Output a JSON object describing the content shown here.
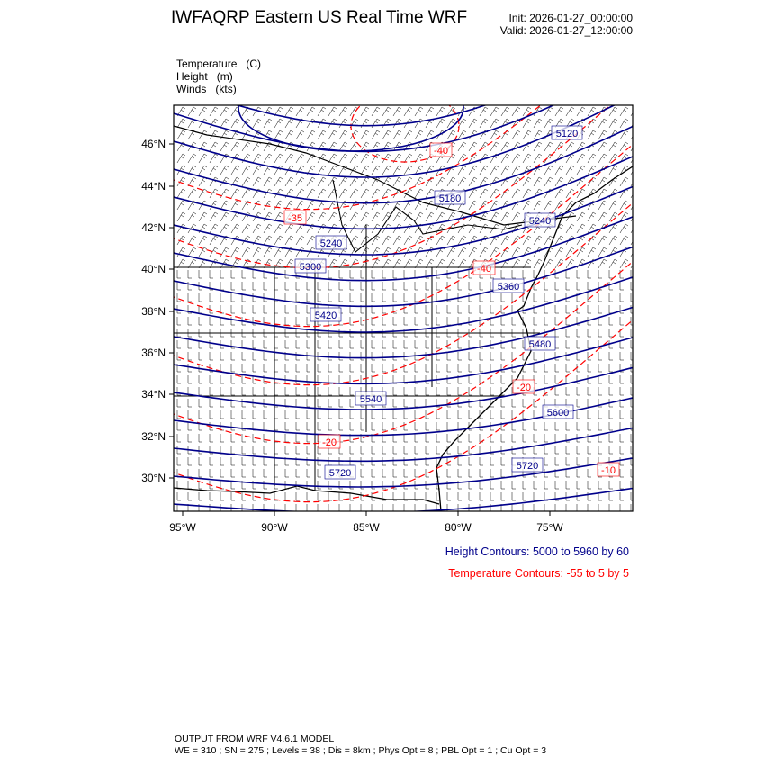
{
  "header": {
    "title": "IWFAQRP Eastern US Real Time WRF",
    "init": "Init: 2026-01-27_00:00:00",
    "valid": "Valid: 2026-01-27_12:00:00"
  },
  "fields": [
    {
      "name": "Temperature",
      "unit": "(C)"
    },
    {
      "name": "Height",
      "unit": "(m)"
    },
    {
      "name": "Winds",
      "unit": "(kts)"
    }
  ],
  "map": {
    "lon_ticks": [
      "95°W",
      "90°W",
      "85°W",
      "80°W",
      "75°W"
    ],
    "lat_ticks": [
      "46°N",
      "44°N",
      "42°N",
      "40°N",
      "38°N",
      "36°N",
      "34°N",
      "32°N",
      "30°N"
    ],
    "height_labels": [
      "5120",
      "5180",
      "5240",
      "5240",
      "5300",
      "5360",
      "5420",
      "5480",
      "5540",
      "5600",
      "5720",
      "5720"
    ],
    "temperature_labels": [
      "-40",
      "-35",
      "-40",
      "-20",
      "-20",
      "-10"
    ],
    "colors": {
      "height": "#00008b",
      "temperature": "#ff0000",
      "map_lines": "#000000",
      "wind_barbs": "#000000"
    }
  },
  "legend": {
    "height": "Height Contours: 5000 to 5960 by 60",
    "temperature": "Temperature Contours: -55 to 5 by 5"
  },
  "footer": {
    "line1": "OUTPUT FROM WRF V4.6.1 MODEL",
    "line2": "WE = 310 ; SN = 275 ; Levels = 38 ; Dis = 8km ; Phys Opt = 8 ; PBL Opt = 1 ; Cu Opt = 3"
  }
}
